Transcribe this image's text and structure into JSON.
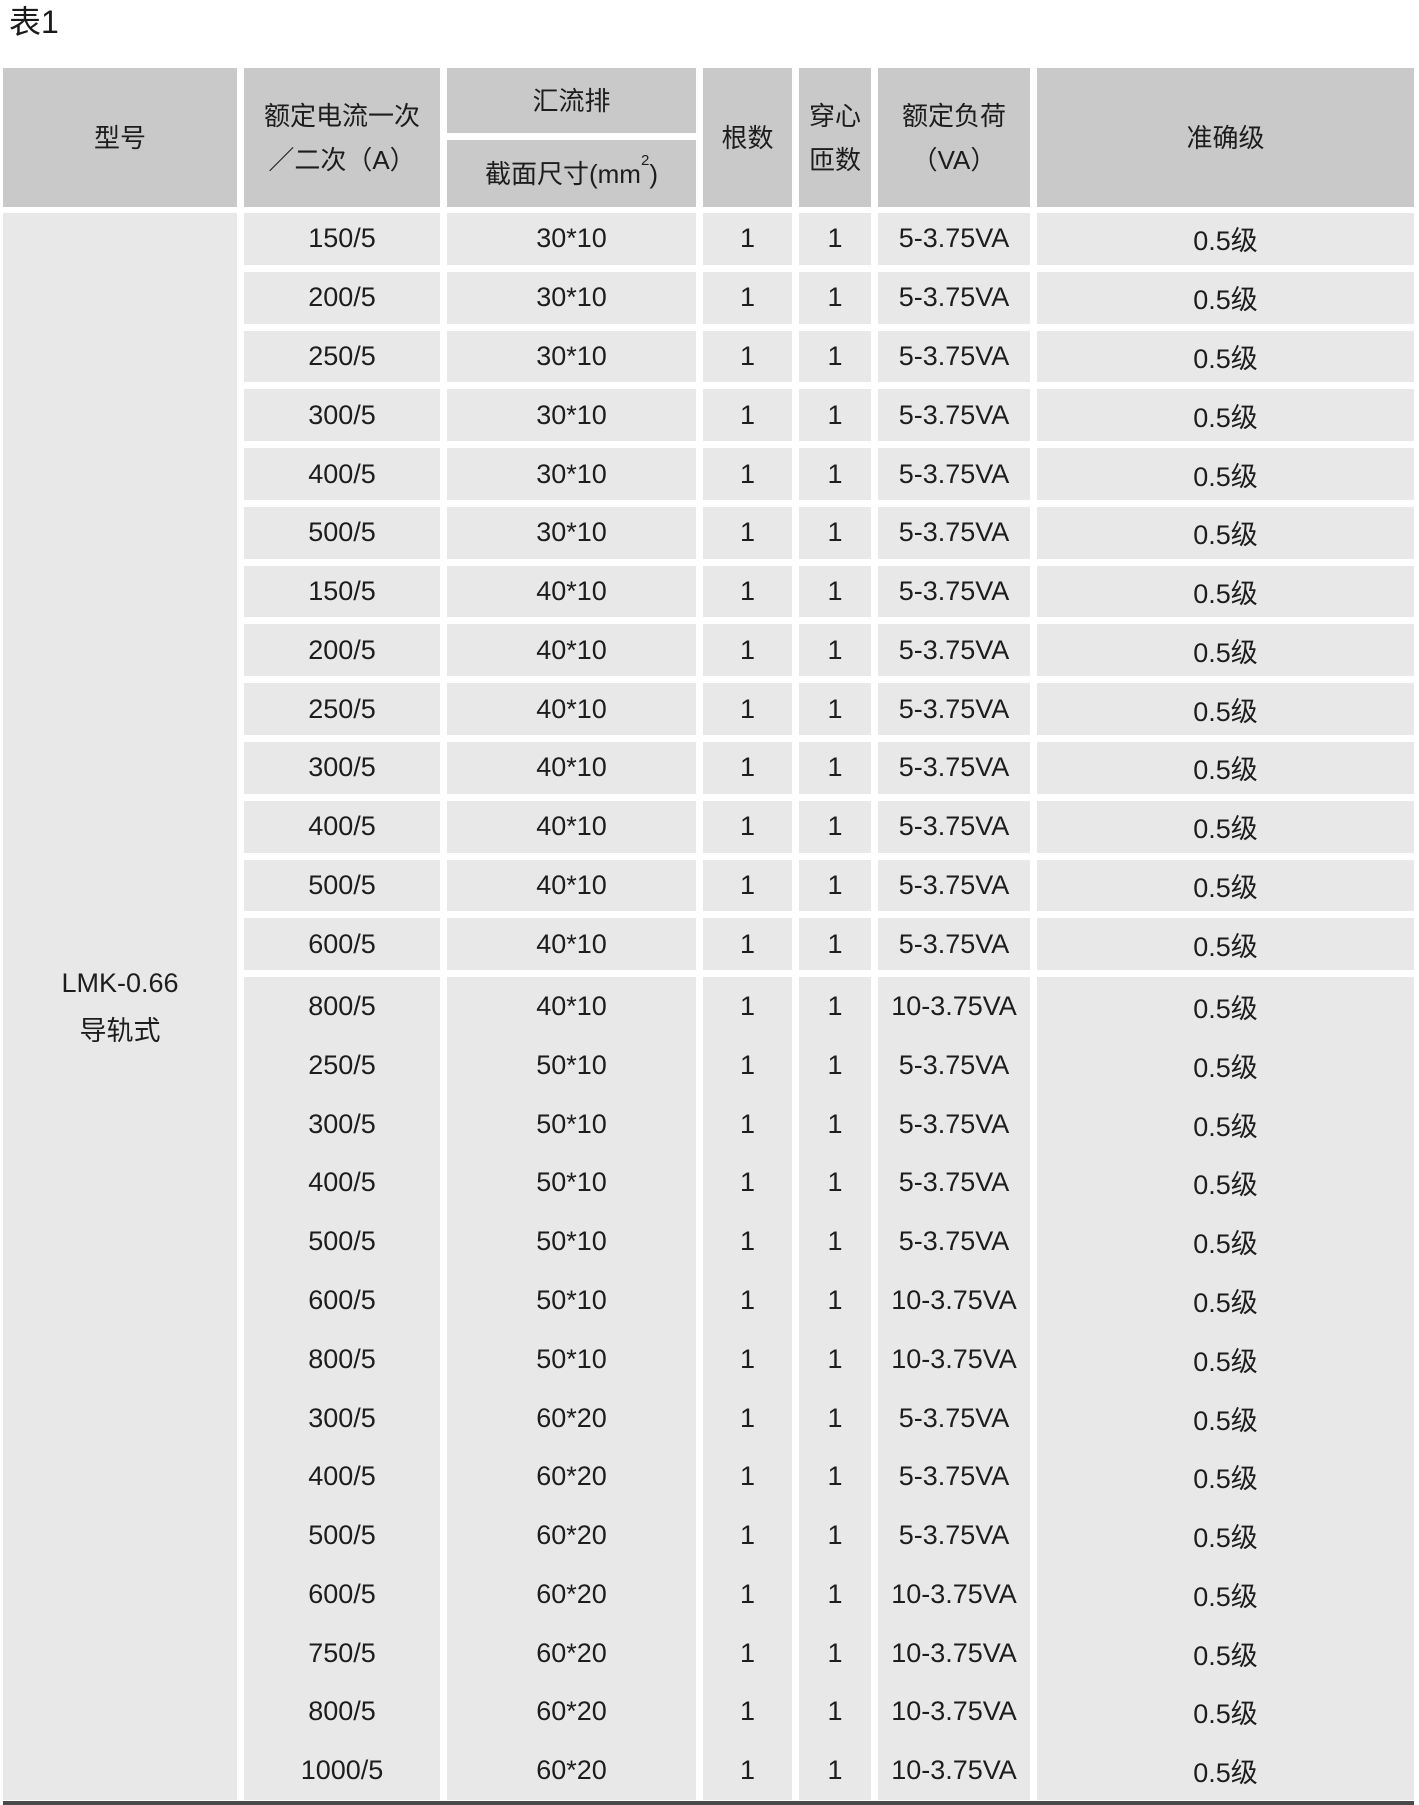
{
  "title": "表1",
  "header": {
    "model": "型号",
    "current_line1": "额定电流一次",
    "current_line2": "／二次（A）",
    "busbar": "汇流排",
    "section_prefix": "截面尺寸(mm",
    "section_sup": "2",
    "section_suffix": ")",
    "count": "根数",
    "turns_line1": "穿心",
    "turns_line2": "匝数",
    "load_line1": "额定负荷",
    "load_line2": "（VA）",
    "accuracy": "准确级"
  },
  "model": {
    "line1": "LMK-0.66",
    "line2": "导轨式"
  },
  "separator_row_count": 13,
  "rows": [
    [
      "150/5",
      "30*10",
      "1",
      "1",
      "5-3.75VA",
      "0.5级"
    ],
    [
      "200/5",
      "30*10",
      "1",
      "1",
      "5-3.75VA",
      "0.5级"
    ],
    [
      "250/5",
      "30*10",
      "1",
      "1",
      "5-3.75VA",
      "0.5级"
    ],
    [
      "300/5",
      "30*10",
      "1",
      "1",
      "5-3.75VA",
      "0.5级"
    ],
    [
      "400/5",
      "30*10",
      "1",
      "1",
      "5-3.75VA",
      "0.5级"
    ],
    [
      "500/5",
      "30*10",
      "1",
      "1",
      "5-3.75VA",
      "0.5级"
    ],
    [
      "150/5",
      "40*10",
      "1",
      "1",
      "5-3.75VA",
      "0.5级"
    ],
    [
      "200/5",
      "40*10",
      "1",
      "1",
      "5-3.75VA",
      "0.5级"
    ],
    [
      "250/5",
      "40*10",
      "1",
      "1",
      "5-3.75VA",
      "0.5级"
    ],
    [
      "300/5",
      "40*10",
      "1",
      "1",
      "5-3.75VA",
      "0.5级"
    ],
    [
      "400/5",
      "40*10",
      "1",
      "1",
      "5-3.75VA",
      "0.5级"
    ],
    [
      "500/5",
      "40*10",
      "1",
      "1",
      "5-3.75VA",
      "0.5级"
    ],
    [
      "600/5",
      "40*10",
      "1",
      "1",
      "5-3.75VA",
      "0.5级"
    ],
    [
      "800/5",
      "40*10",
      "1",
      "1",
      "10-3.75VA",
      "0.5级"
    ],
    [
      "250/5",
      "50*10",
      "1",
      "1",
      "5-3.75VA",
      "0.5级"
    ],
    [
      "300/5",
      "50*10",
      "1",
      "1",
      "5-3.75VA",
      "0.5级"
    ],
    [
      "400/5",
      "50*10",
      "1",
      "1",
      "5-3.75VA",
      "0.5级"
    ],
    [
      "500/5",
      "50*10",
      "1",
      "1",
      "5-3.75VA",
      "0.5级"
    ],
    [
      "600/5",
      "50*10",
      "1",
      "1",
      "10-3.75VA",
      "0.5级"
    ],
    [
      "800/5",
      "50*10",
      "1",
      "1",
      "10-3.75VA",
      "0.5级"
    ],
    [
      "300/5",
      "60*20",
      "1",
      "1",
      "5-3.75VA",
      "0.5级"
    ],
    [
      "400/5",
      "60*20",
      "1",
      "1",
      "5-3.75VA",
      "0.5级"
    ],
    [
      "500/5",
      "60*20",
      "1",
      "1",
      "5-3.75VA",
      "0.5级"
    ],
    [
      "600/5",
      "60*20",
      "1",
      "1",
      "10-3.75VA",
      "0.5级"
    ],
    [
      "750/5",
      "60*20",
      "1",
      "1",
      "10-3.75VA",
      "0.5级"
    ],
    [
      "800/5",
      "60*20",
      "1",
      "1",
      "10-3.75VA",
      "0.5级"
    ],
    [
      "1000/5",
      "60*20",
      "1",
      "1",
      "10-3.75VA",
      "0.5级"
    ]
  ],
  "colors": {
    "header_bg": "#c9c9c9",
    "cell_bg": "#e8e8e8",
    "separator": "#ffffff",
    "text": "#1d1d1d",
    "bottom_bar": "#4a4a4a"
  }
}
